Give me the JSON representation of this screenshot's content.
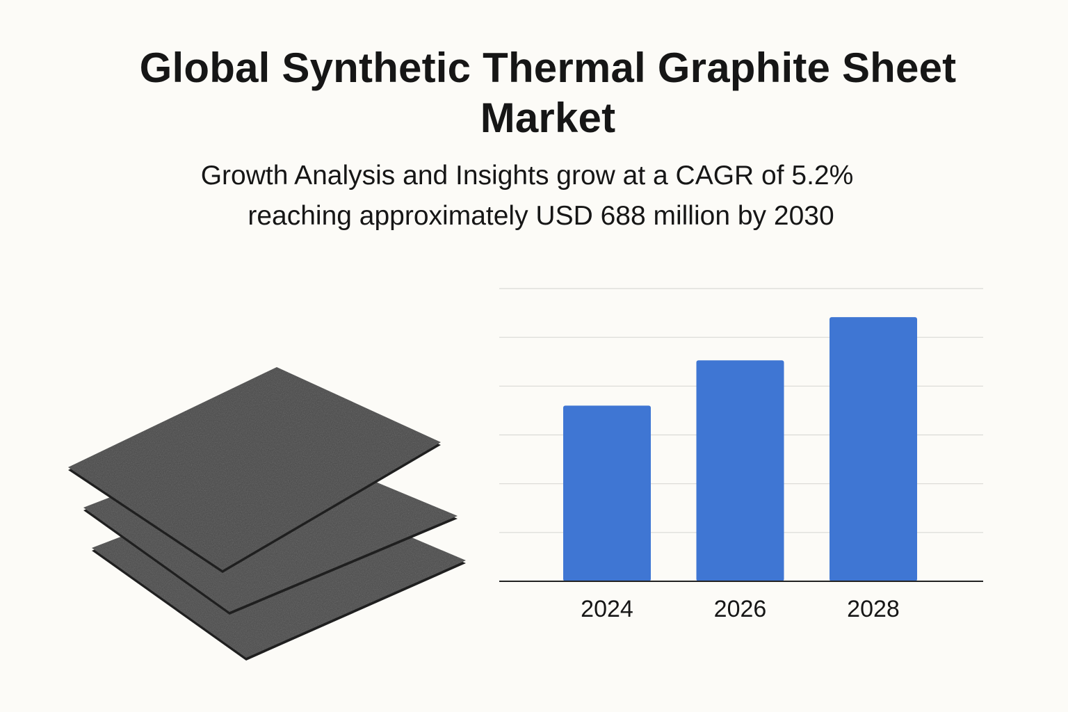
{
  "header": {
    "title": "Global Synthetic Thermal Graphite Sheet Market",
    "subtitle_line1": "Growth Analysis and Insights grow at a CAGR of 5.2%",
    "subtitle_line2": "reaching approximately USD 688 million by 2030"
  },
  "illustration": {
    "icon": "graphite-sheets-stack",
    "color": "#454545"
  },
  "chart_data": {
    "type": "bar",
    "categories": [
      "2024",
      "2026",
      "2028"
    ],
    "values": [
      252,
      317,
      379
    ],
    "ylim": [
      0,
      420
    ],
    "grid": true,
    "bar_color": "#3f76d3",
    "grid_color": "#d9d9d5",
    "axis_color": "#222222"
  }
}
